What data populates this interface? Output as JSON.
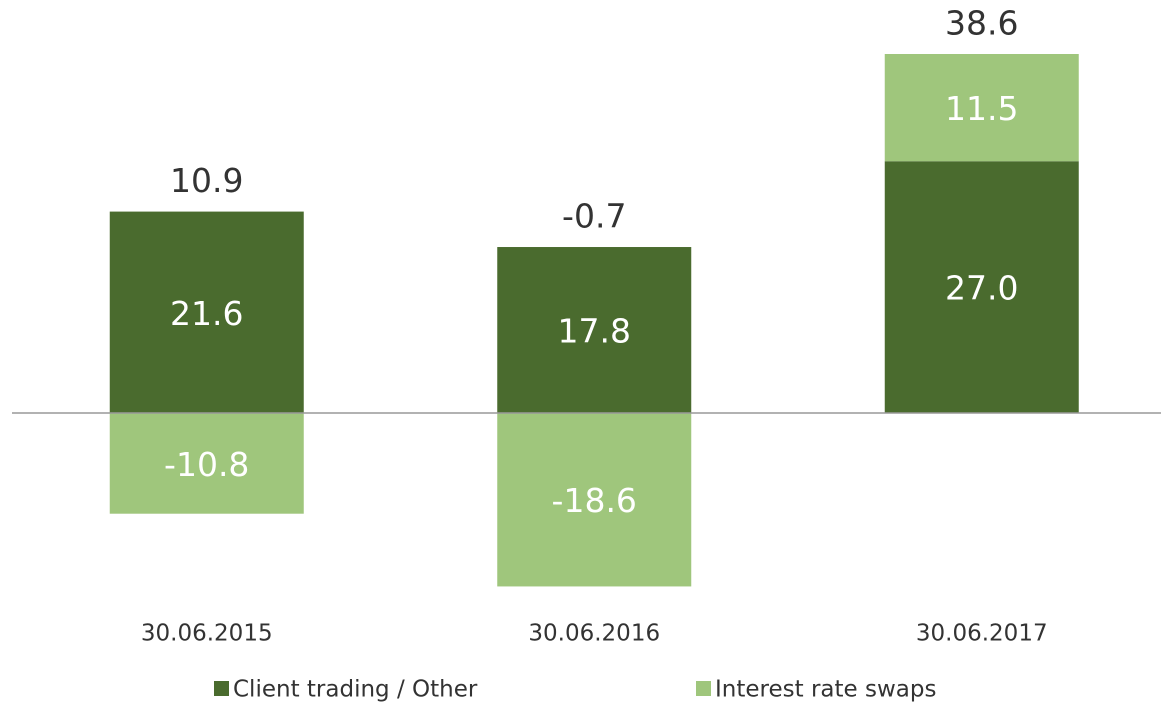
{
  "chart_data": {
    "type": "stacked_bar",
    "categories": [
      "30.06.2015",
      "30.06.2016",
      "30.06.2017"
    ],
    "series": [
      {
        "name": "Client trading / Other",
        "color": "#4a6b2e",
        "values": [
          21.6,
          17.8,
          27.0
        ],
        "value_labels": [
          "21.6",
          "17.8",
          "27.0"
        ]
      },
      {
        "name": "Interest rate swaps",
        "color": "#9fc67c",
        "values": [
          -10.8,
          -18.6,
          11.5
        ],
        "value_labels": [
          "-10.8",
          "-18.6",
          "11.5"
        ]
      }
    ],
    "totals": [
      10.9,
      -0.7,
      38.6
    ],
    "legend": "bottom"
  }
}
